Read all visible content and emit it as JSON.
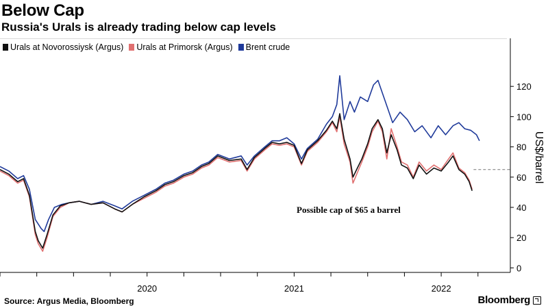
{
  "chart_data": {
    "type": "line",
    "title": "Below Cap",
    "subtitle": "Russia's Urals is already trading below cap levels",
    "ylabel": "US$/barrel",
    "ylim": [
      -3,
      140
    ],
    "yticks": [
      0,
      20,
      40,
      60,
      80,
      100,
      120
    ],
    "xlim": [
      2019.5,
      2022.97
    ],
    "xticks": [
      {
        "label": "2020",
        "value": 2020.0
      },
      {
        "label": "2021",
        "value": 2021.0
      },
      {
        "label": "2022",
        "value": 2022.0
      }
    ],
    "series": [
      {
        "name": "Brent crude",
        "color": "#1f3a9a",
        "points": [
          [
            2019.5,
            67
          ],
          [
            2019.56,
            64
          ],
          [
            2019.62,
            59
          ],
          [
            2019.66,
            61
          ],
          [
            2019.7,
            52
          ],
          [
            2019.74,
            32
          ],
          [
            2019.78,
            26
          ],
          [
            2019.8,
            24
          ],
          [
            2019.83,
            32
          ],
          [
            2019.87,
            40
          ],
          [
            2019.92,
            42
          ],
          [
            2019.97,
            43
          ],
          [
            2020.04,
            44
          ],
          [
            2020.12,
            42
          ],
          [
            2020.2,
            44
          ],
          [
            2020.28,
            41
          ],
          [
            2020.33,
            39
          ],
          [
            2020.4,
            44
          ],
          [
            2020.48,
            48
          ],
          [
            2020.56,
            52
          ],
          [
            2020.62,
            56
          ],
          [
            2020.68,
            58
          ],
          [
            2020.75,
            62
          ],
          [
            2020.81,
            64
          ],
          [
            2020.87,
            68
          ],
          [
            2020.92,
            70
          ],
          [
            2020.98,
            75
          ],
          [
            2021.06,
            72
          ],
          [
            2021.14,
            74
          ],
          [
            2021.18,
            68
          ],
          [
            2021.23,
            74
          ],
          [
            2021.3,
            80
          ],
          [
            2021.35,
            84
          ],
          [
            2021.4,
            84
          ],
          [
            2021.45,
            86
          ],
          [
            2021.5,
            82
          ],
          [
            2021.55,
            72
          ],
          [
            2021.59,
            79
          ],
          [
            2021.66,
            85
          ],
          [
            2021.72,
            95
          ],
          [
            2021.76,
            100
          ],
          [
            2021.79,
            108
          ],
          [
            2021.81,
            127
          ],
          [
            2021.84,
            98
          ],
          [
            2021.88,
            110
          ],
          [
            2021.91,
            103
          ],
          [
            2021.95,
            113
          ],
          [
            2022.0,
            110
          ],
          [
            2022.04,
            121
          ],
          [
            2022.07,
            124
          ],
          [
            2022.12,
            110
          ],
          [
            2022.17,
            96
          ],
          [
            2022.22,
            103
          ],
          [
            2022.27,
            98
          ],
          [
            2022.32,
            90
          ],
          [
            2022.37,
            94
          ],
          [
            2022.43,
            86
          ],
          [
            2022.48,
            94
          ],
          [
            2022.53,
            88
          ],
          [
            2022.58,
            94
          ],
          [
            2022.62,
            96
          ],
          [
            2022.66,
            92
          ],
          [
            2022.7,
            91
          ],
          [
            2022.74,
            88
          ],
          [
            2022.76,
            84
          ]
        ]
      },
      {
        "name": "Urals at Primorsk (Argus)",
        "color": "#e07070",
        "points": [
          [
            2019.5,
            64
          ],
          [
            2019.56,
            61
          ],
          [
            2019.62,
            56
          ],
          [
            2019.66,
            58
          ],
          [
            2019.7,
            47
          ],
          [
            2019.74,
            22
          ],
          [
            2019.76,
            16
          ],
          [
            2019.79,
            11
          ],
          [
            2019.82,
            20
          ],
          [
            2019.86,
            34
          ],
          [
            2019.91,
            40
          ],
          [
            2019.97,
            43
          ],
          [
            2020.04,
            44
          ],
          [
            2020.12,
            42
          ],
          [
            2020.2,
            43
          ],
          [
            2020.28,
            39
          ],
          [
            2020.33,
            37
          ],
          [
            2020.4,
            42
          ],
          [
            2020.48,
            46
          ],
          [
            2020.56,
            50
          ],
          [
            2020.62,
            54
          ],
          [
            2020.68,
            56
          ],
          [
            2020.75,
            60
          ],
          [
            2020.81,
            62
          ],
          [
            2020.87,
            66
          ],
          [
            2020.92,
            68
          ],
          [
            2020.98,
            73
          ],
          [
            2021.06,
            70
          ],
          [
            2021.14,
            71
          ],
          [
            2021.18,
            64
          ],
          [
            2021.23,
            72
          ],
          [
            2021.3,
            78
          ],
          [
            2021.35,
            82
          ],
          [
            2021.4,
            81
          ],
          [
            2021.45,
            82
          ],
          [
            2021.5,
            80
          ],
          [
            2021.55,
            68
          ],
          [
            2021.59,
            77
          ],
          [
            2021.66,
            83
          ],
          [
            2021.72,
            90
          ],
          [
            2021.76,
            96
          ],
          [
            2021.79,
            90
          ],
          [
            2021.81,
            100
          ],
          [
            2021.84,
            82
          ],
          [
            2021.88,
            70
          ],
          [
            2021.9,
            56
          ],
          [
            2021.93,
            63
          ],
          [
            2021.96,
            70
          ],
          [
            2022.0,
            80
          ],
          [
            2022.03,
            90
          ],
          [
            2022.07,
            97
          ],
          [
            2022.1,
            90
          ],
          [
            2022.13,
            72
          ],
          [
            2022.16,
            92
          ],
          [
            2022.2,
            80
          ],
          [
            2022.23,
            70
          ],
          [
            2022.27,
            68
          ],
          [
            2022.31,
            60
          ],
          [
            2022.35,
            70
          ],
          [
            2022.4,
            64
          ],
          [
            2022.45,
            68
          ],
          [
            2022.5,
            65
          ],
          [
            2022.55,
            72
          ],
          [
            2022.58,
            76
          ],
          [
            2022.62,
            66
          ],
          [
            2022.66,
            63
          ],
          [
            2022.69,
            58
          ],
          [
            2022.71,
            52
          ]
        ]
      },
      {
        "name": "Urals at Novorossiysk (Argus)",
        "color": "#111111",
        "points": [
          [
            2019.5,
            65
          ],
          [
            2019.56,
            62
          ],
          [
            2019.62,
            57
          ],
          [
            2019.66,
            59
          ],
          [
            2019.7,
            48
          ],
          [
            2019.74,
            24
          ],
          [
            2019.76,
            18
          ],
          [
            2019.79,
            13
          ],
          [
            2019.82,
            22
          ],
          [
            2019.86,
            35
          ],
          [
            2019.91,
            41
          ],
          [
            2019.97,
            43
          ],
          [
            2020.04,
            44
          ],
          [
            2020.12,
            42
          ],
          [
            2020.2,
            43
          ],
          [
            2020.28,
            39
          ],
          [
            2020.33,
            37
          ],
          [
            2020.4,
            42
          ],
          [
            2020.48,
            47
          ],
          [
            2020.56,
            51
          ],
          [
            2020.62,
            55
          ],
          [
            2020.68,
            57
          ],
          [
            2020.75,
            61
          ],
          [
            2020.81,
            63
          ],
          [
            2020.87,
            67
          ],
          [
            2020.92,
            69
          ],
          [
            2020.98,
            74
          ],
          [
            2021.06,
            71
          ],
          [
            2021.14,
            72
          ],
          [
            2021.18,
            65
          ],
          [
            2021.23,
            73
          ],
          [
            2021.3,
            79
          ],
          [
            2021.35,
            83
          ],
          [
            2021.4,
            82
          ],
          [
            2021.45,
            83
          ],
          [
            2021.5,
            81
          ],
          [
            2021.55,
            69
          ],
          [
            2021.59,
            78
          ],
          [
            2021.66,
            84
          ],
          [
            2021.72,
            91
          ],
          [
            2021.76,
            97
          ],
          [
            2021.79,
            92
          ],
          [
            2021.81,
            102
          ],
          [
            2021.84,
            85
          ],
          [
            2021.88,
            72
          ],
          [
            2021.9,
            60
          ],
          [
            2021.93,
            66
          ],
          [
            2021.96,
            72
          ],
          [
            2022.0,
            82
          ],
          [
            2022.03,
            92
          ],
          [
            2022.07,
            98
          ],
          [
            2022.1,
            92
          ],
          [
            2022.13,
            76
          ],
          [
            2022.16,
            88
          ],
          [
            2022.2,
            78
          ],
          [
            2022.23,
            68
          ],
          [
            2022.27,
            66
          ],
          [
            2022.31,
            59
          ],
          [
            2022.35,
            68
          ],
          [
            2022.4,
            62
          ],
          [
            2022.45,
            66
          ],
          [
            2022.5,
            64
          ],
          [
            2022.55,
            70
          ],
          [
            2022.58,
            74
          ],
          [
            2022.62,
            65
          ],
          [
            2022.66,
            62
          ],
          [
            2022.69,
            57
          ],
          [
            2022.71,
            51
          ]
        ]
      }
    ],
    "reference_line": {
      "y": 65,
      "label": "Possible cap of $65 a barrel",
      "style": "dashed"
    },
    "legend_position": "top-left",
    "grid": false
  },
  "colors": {
    "brent": "#1f3a9a",
    "primorsk": "#e07070",
    "novorossiysk": "#111111"
  },
  "source": "Source: Argus Media, Bloomberg",
  "brand": "Bloomberg"
}
